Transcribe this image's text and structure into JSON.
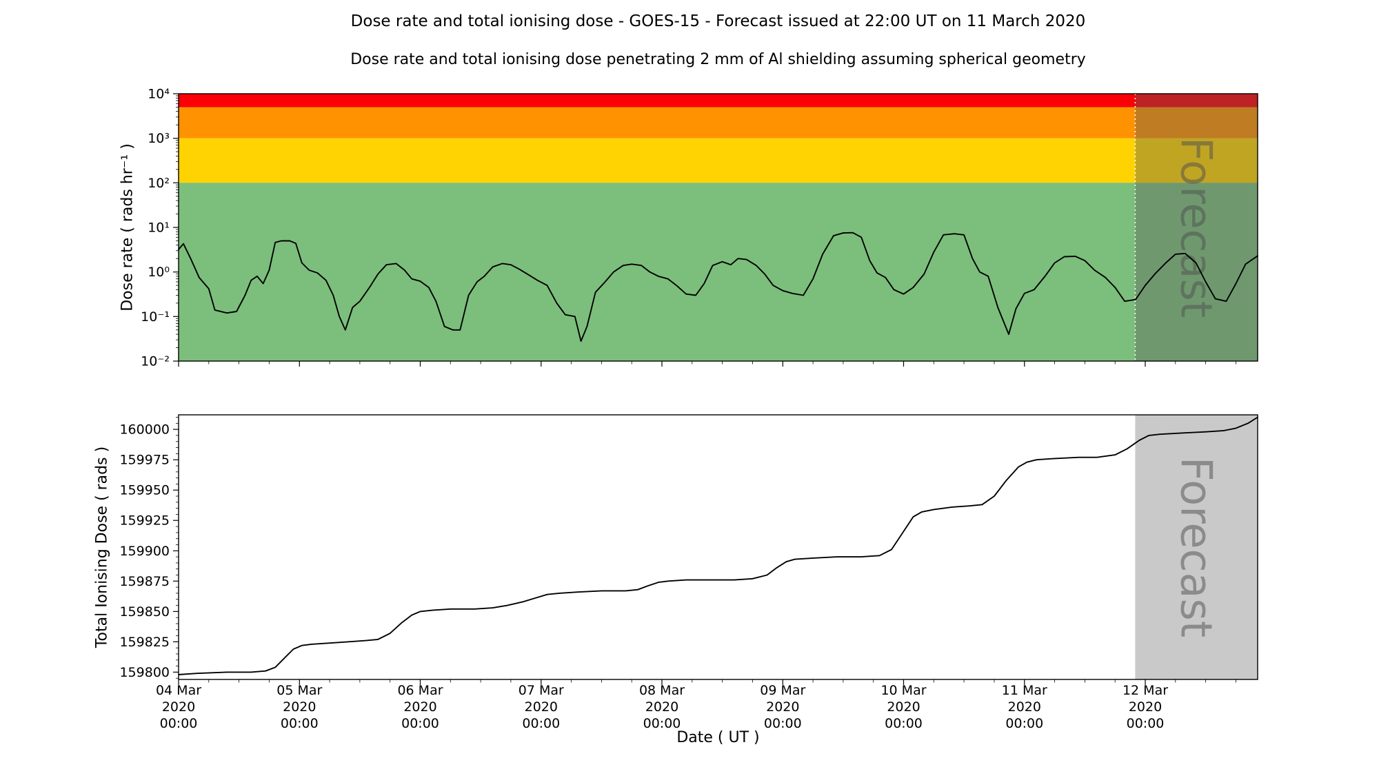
{
  "title": "Dose rate and total ionising dose - GOES-15 - Forecast issued at 22:00 UT on 11 March 2020",
  "subtitle": "Dose rate and total ionising dose penetrating 2 mm of Al shielding assuming spherical geometry",
  "forecast": {
    "label": "Forecast",
    "start_day": 7.9167,
    "overlay_top": "rgba(90,90,90,0.38)",
    "overlay_bottom": "rgba(120,120,120,0.40)",
    "text_color": "#4f4f4f",
    "text_opacity": 0.5,
    "font_size": 62,
    "divider_color": "#ffffff"
  },
  "x_axis": {
    "label": "Date ( UT )",
    "minor_step_days": 0.25,
    "ticks": [
      {
        "day": 0,
        "lines": [
          "04 Mar",
          "2020",
          "00:00"
        ]
      },
      {
        "day": 1,
        "lines": [
          "05 Mar",
          "2020",
          "00:00"
        ]
      },
      {
        "day": 2,
        "lines": [
          "06 Mar",
          "2020",
          "00:00"
        ]
      },
      {
        "day": 3,
        "lines": [
          "07 Mar",
          "2020",
          "00:00"
        ]
      },
      {
        "day": 4,
        "lines": [
          "08 Mar",
          "2020",
          "00:00"
        ]
      },
      {
        "day": 5,
        "lines": [
          "09 Mar",
          "2020",
          "00:00"
        ]
      },
      {
        "day": 6,
        "lines": [
          "10 Mar",
          "2020",
          "00:00"
        ]
      },
      {
        "day": 7,
        "lines": [
          "11 Mar",
          "2020",
          "00:00"
        ]
      },
      {
        "day": 8,
        "lines": [
          "12 Mar",
          "2020",
          "00:00"
        ]
      }
    ]
  },
  "chart_data": [
    {
      "type": "line",
      "name": "dose-rate",
      "title": "Dose rate penetrating 2 mm Al shielding",
      "ylabel": "Dose rate ( rads hr⁻¹ )",
      "yscale": "log",
      "ylim": [
        0.01,
        10000
      ],
      "xlim_days": [
        0,
        8.93
      ],
      "x_origin": "04 Mar 2020 00:00",
      "ytick_values": [
        10000,
        1000,
        100,
        10,
        1,
        0.1,
        0.01
      ],
      "ytick_labels": [
        "10⁴",
        "10³",
        "10²",
        "10¹",
        "10⁰",
        "10⁻¹",
        "10⁻²"
      ],
      "bands": [
        {
          "name": "red-alert-band",
          "from": 5000,
          "to": 10000,
          "color": "#fb0006"
        },
        {
          "name": "orange-alert-band",
          "from": 1000,
          "to": 5000,
          "color": "#ff9201"
        },
        {
          "name": "yellow-alert-band",
          "from": 100,
          "to": 1000,
          "color": "#ffd302"
        },
        {
          "name": "green-nominal-band",
          "from": 0.01,
          "to": 100,
          "color": "#7cbe7c"
        }
      ],
      "series": [
        {
          "name": "dose-rate",
          "color": "#000000",
          "points": [
            [
              0,
              3.2
            ],
            [
              0.04,
              4.3
            ],
            [
              0.1,
              2
            ],
            [
              0.17,
              0.75
            ],
            [
              0.25,
              0.42
            ],
            [
              0.3,
              0.14
            ],
            [
              0.4,
              0.12
            ],
            [
              0.48,
              0.13
            ],
            [
              0.55,
              0.3
            ],
            [
              0.6,
              0.65
            ],
            [
              0.65,
              0.8
            ],
            [
              0.7,
              0.55
            ],
            [
              0.75,
              1.1
            ],
            [
              0.8,
              4.6
            ],
            [
              0.85,
              5
            ],
            [
              0.92,
              5
            ],
            [
              0.97,
              4.4
            ],
            [
              1.02,
              1.6
            ],
            [
              1.08,
              1.1
            ],
            [
              1.15,
              0.95
            ],
            [
              1.22,
              0.65
            ],
            [
              1.28,
              0.3
            ],
            [
              1.33,
              0.1
            ],
            [
              1.38,
              0.05
            ],
            [
              1.44,
              0.16
            ],
            [
              1.5,
              0.22
            ],
            [
              1.58,
              0.45
            ],
            [
              1.65,
              0.9
            ],
            [
              1.72,
              1.45
            ],
            [
              1.8,
              1.55
            ],
            [
              1.87,
              1.1
            ],
            [
              1.93,
              0.7
            ],
            [
              2,
              0.62
            ],
            [
              2.07,
              0.45
            ],
            [
              2.13,
              0.22
            ],
            [
              2.2,
              0.06
            ],
            [
              2.27,
              0.05
            ],
            [
              2.33,
              0.05
            ],
            [
              2.4,
              0.3
            ],
            [
              2.47,
              0.6
            ],
            [
              2.53,
              0.8
            ],
            [
              2.6,
              1.3
            ],
            [
              2.68,
              1.55
            ],
            [
              2.75,
              1.45
            ],
            [
              2.82,
              1.15
            ],
            [
              2.9,
              0.85
            ],
            [
              2.97,
              0.65
            ],
            [
              3.05,
              0.5
            ],
            [
              3.13,
              0.2
            ],
            [
              3.2,
              0.11
            ],
            [
              3.28,
              0.1
            ],
            [
              3.33,
              0.028
            ],
            [
              3.38,
              0.06
            ],
            [
              3.45,
              0.35
            ],
            [
              3.53,
              0.6
            ],
            [
              3.6,
              1
            ],
            [
              3.68,
              1.4
            ],
            [
              3.75,
              1.5
            ],
            [
              3.83,
              1.4
            ],
            [
              3.9,
              1
            ],
            [
              3.97,
              0.8
            ],
            [
              4.05,
              0.7
            ],
            [
              4.12,
              0.5
            ],
            [
              4.2,
              0.32
            ],
            [
              4.28,
              0.3
            ],
            [
              4.35,
              0.55
            ],
            [
              4.42,
              1.4
            ],
            [
              4.5,
              1.7
            ],
            [
              4.57,
              1.45
            ],
            [
              4.63,
              2
            ],
            [
              4.7,
              1.9
            ],
            [
              4.78,
              1.4
            ],
            [
              4.85,
              0.9
            ],
            [
              4.92,
              0.5
            ],
            [
              5,
              0.38
            ],
            [
              5.08,
              0.33
            ],
            [
              5.17,
              0.3
            ],
            [
              5.25,
              0.7
            ],
            [
              5.33,
              2.5
            ],
            [
              5.42,
              6.5
            ],
            [
              5.5,
              7.5
            ],
            [
              5.58,
              7.6
            ],
            [
              5.65,
              6
            ],
            [
              5.72,
              1.8
            ],
            [
              5.78,
              0.95
            ],
            [
              5.85,
              0.75
            ],
            [
              5.92,
              0.4
            ],
            [
              6,
              0.32
            ],
            [
              6.08,
              0.45
            ],
            [
              6.17,
              0.9
            ],
            [
              6.25,
              2.8
            ],
            [
              6.33,
              6.8
            ],
            [
              6.42,
              7.2
            ],
            [
              6.5,
              6.8
            ],
            [
              6.57,
              2
            ],
            [
              6.63,
              1
            ],
            [
              6.7,
              0.8
            ],
            [
              6.78,
              0.16
            ],
            [
              6.87,
              0.04
            ],
            [
              6.93,
              0.15
            ],
            [
              7,
              0.33
            ],
            [
              7.08,
              0.4
            ],
            [
              7.17,
              0.8
            ],
            [
              7.25,
              1.6
            ],
            [
              7.33,
              2.2
            ],
            [
              7.42,
              2.25
            ],
            [
              7.5,
              1.8
            ],
            [
              7.58,
              1.1
            ],
            [
              7.67,
              0.75
            ],
            [
              7.75,
              0.45
            ],
            [
              7.83,
              0.22
            ],
            [
              7.92,
              0.24
            ],
            [
              8,
              0.5
            ],
            [
              8.08,
              0.9
            ],
            [
              8.17,
              1.6
            ],
            [
              8.25,
              2.5
            ],
            [
              8.33,
              2.6
            ],
            [
              8.42,
              1.6
            ],
            [
              8.5,
              0.6
            ],
            [
              8.58,
              0.25
            ],
            [
              8.67,
              0.22
            ],
            [
              8.75,
              0.55
            ],
            [
              8.83,
              1.5
            ],
            [
              8.93,
              2.3
            ]
          ]
        }
      ]
    },
    {
      "type": "line",
      "name": "total-ionising-dose",
      "title": "Total ionising dose",
      "ylabel": "Total Ionising Dose ( rads )",
      "yscale": "linear",
      "ylim": [
        159794,
        160012
      ],
      "xlim_days": [
        0,
        8.93
      ],
      "x_origin": "04 Mar 2020 00:00",
      "ytick_values": [
        159800,
        159825,
        159850,
        159875,
        159900,
        159925,
        159950,
        159975,
        160000
      ],
      "y_minor_step": 5,
      "series": [
        {
          "name": "total-dose",
          "color": "#000000",
          "points": [
            [
              0,
              159798
            ],
            [
              0.15,
              159799
            ],
            [
              0.4,
              159800
            ],
            [
              0.6,
              159800
            ],
            [
              0.72,
              159801
            ],
            [
              0.8,
              159804
            ],
            [
              0.88,
              159812
            ],
            [
              0.95,
              159819
            ],
            [
              1.02,
              159822
            ],
            [
              1.1,
              159823
            ],
            [
              1.25,
              159824
            ],
            [
              1.4,
              159825
            ],
            [
              1.55,
              159826
            ],
            [
              1.65,
              159827
            ],
            [
              1.75,
              159832
            ],
            [
              1.85,
              159841
            ],
            [
              1.93,
              159847
            ],
            [
              2,
              159850
            ],
            [
              2.1,
              159851
            ],
            [
              2.25,
              159852
            ],
            [
              2.45,
              159852
            ],
            [
              2.6,
              159853
            ],
            [
              2.72,
              159855
            ],
            [
              2.85,
              159858
            ],
            [
              2.95,
              159861
            ],
            [
              3.05,
              159864
            ],
            [
              3.15,
              159865
            ],
            [
              3.3,
              159866
            ],
            [
              3.5,
              159867
            ],
            [
              3.7,
              159867
            ],
            [
              3.8,
              159868
            ],
            [
              3.88,
              159871
            ],
            [
              3.97,
              159874
            ],
            [
              4.05,
              159875
            ],
            [
              4.2,
              159876
            ],
            [
              4.4,
              159876
            ],
            [
              4.6,
              159876
            ],
            [
              4.75,
              159877
            ],
            [
              4.87,
              159880
            ],
            [
              4.95,
              159886
            ],
            [
              5.03,
              159891
            ],
            [
              5.1,
              159893
            ],
            [
              5.25,
              159894
            ],
            [
              5.45,
              159895
            ],
            [
              5.65,
              159895
            ],
            [
              5.8,
              159896
            ],
            [
              5.9,
              159901
            ],
            [
              6,
              159916
            ],
            [
              6.08,
              159928
            ],
            [
              6.15,
              159932
            ],
            [
              6.25,
              159934
            ],
            [
              6.4,
              159936
            ],
            [
              6.55,
              159937
            ],
            [
              6.65,
              159938
            ],
            [
              6.75,
              159945
            ],
            [
              6.85,
              159958
            ],
            [
              6.95,
              159969
            ],
            [
              7.02,
              159973
            ],
            [
              7.1,
              159975
            ],
            [
              7.25,
              159976
            ],
            [
              7.45,
              159977
            ],
            [
              7.6,
              159977
            ],
            [
              7.75,
              159979
            ],
            [
              7.85,
              159984
            ],
            [
              7.95,
              159991
            ],
            [
              8.03,
              159995
            ],
            [
              8.12,
              159996
            ],
            [
              8.3,
              159997
            ],
            [
              8.5,
              159998
            ],
            [
              8.65,
              159999
            ],
            [
              8.75,
              160001
            ],
            [
              8.85,
              160005
            ],
            [
              8.93,
              160010
            ]
          ]
        }
      ]
    }
  ]
}
